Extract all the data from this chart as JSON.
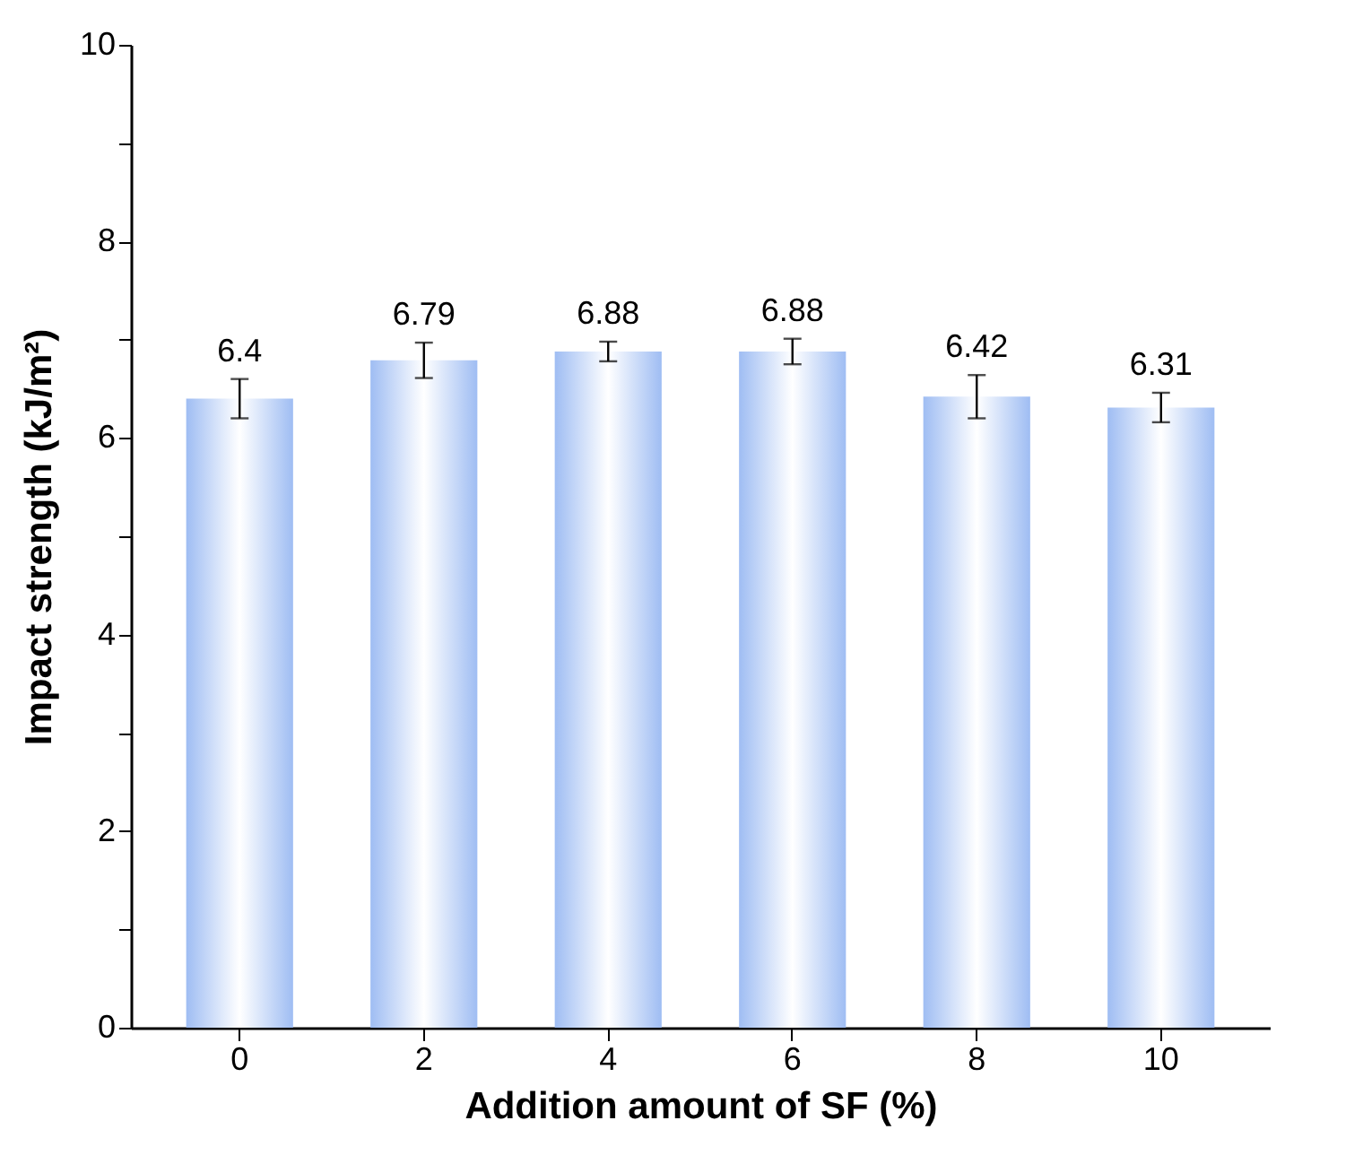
{
  "chart_data": {
    "type": "bar",
    "xlabel": "Addition amount of SF (%)",
    "ylabel": "Impact  strength (kJ/m²)",
    "categories": [
      "0",
      "2",
      "4",
      "6",
      "8",
      "10"
    ],
    "values": [
      6.4,
      6.79,
      6.88,
      6.88,
      6.42,
      6.31
    ],
    "errors": [
      0.2,
      0.18,
      0.1,
      0.13,
      0.22,
      0.15
    ],
    "color": "#9fbdf3",
    "data_labels": true,
    "ylim": [
      0,
      10
    ],
    "yticks": [
      0,
      {
        "value": 1,
        "label": null
      },
      2,
      {
        "value": 3,
        "label": null
      },
      4,
      {
        "value": 5,
        "label": null
      },
      6,
      {
        "value": 7,
        "label": null
      },
      8,
      {
        "value": 9,
        "label": null
      },
      10
    ],
    "grid": false
  }
}
